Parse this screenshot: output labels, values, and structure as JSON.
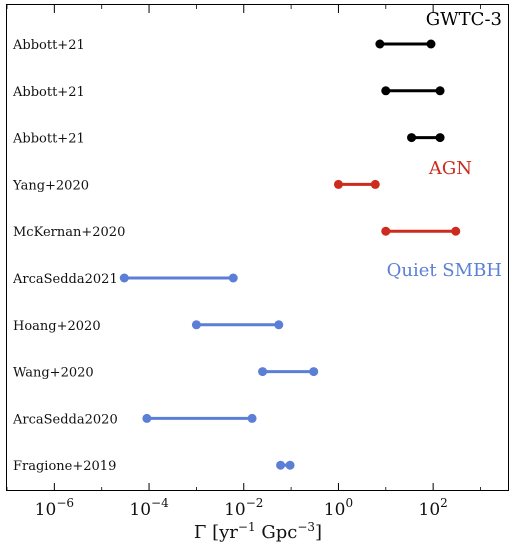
{
  "chart_data": {
    "type": "interval",
    "title": "",
    "xlabel": "Γ [yr⁻¹ Gpc⁻³]",
    "ylabel": "",
    "xscale": "log",
    "xlim": [
      1e-07,
      4000
    ],
    "xticks": [
      {
        "value": 1e-06,
        "base": "10",
        "exp": "−6"
      },
      {
        "value": 0.0001,
        "base": "10",
        "exp": "−4"
      },
      {
        "value": 0.01,
        "base": "10",
        "exp": "−2"
      },
      {
        "value": 1,
        "label": "10",
        "exp": "0"
      },
      {
        "value": 100,
        "base": "10",
        "exp": "2"
      }
    ],
    "grid": false,
    "legend": "none",
    "series": [
      {
        "label": "Abbott+21",
        "low": 7.5,
        "high": 90,
        "group": "GWTC-3",
        "color": "#000000"
      },
      {
        "label": "Abbott+21",
        "low": 10,
        "high": 140,
        "group": "GWTC-3",
        "color": "#000000"
      },
      {
        "label": "Abbott+21",
        "low": 35,
        "high": 140,
        "group": "GWTC-3",
        "color": "#000000"
      },
      {
        "label": "Yang+2020",
        "low": 1.0,
        "high": 6.0,
        "group": "AGN",
        "color": "#cc2b1d"
      },
      {
        "label": "McKernan+2020",
        "low": 10,
        "high": 300,
        "group": "AGN",
        "color": "#cc2b1d"
      },
      {
        "label": "ArcaSedda2021",
        "low": 3e-05,
        "high": 0.006,
        "group": "Quiet SMBH",
        "color": "#5b7fd6"
      },
      {
        "label": "Hoang+2020",
        "low": 0.001,
        "high": 0.055,
        "group": "Quiet SMBH",
        "color": "#5b7fd6"
      },
      {
        "label": "Wang+2020",
        "low": 0.025,
        "high": 0.3,
        "group": "Quiet SMBH",
        "color": "#5b7fd6"
      },
      {
        "label": "ArcaSedda2020",
        "low": 9e-05,
        "high": 0.015,
        "group": "Quiet SMBH",
        "color": "#5b7fd6"
      },
      {
        "label": "Fragione+2019",
        "low": 0.06,
        "high": 0.095,
        "group": "Quiet SMBH",
        "color": "#5b7fd6"
      }
    ],
    "group_labels": [
      {
        "text": "GWTC-3",
        "color": "#000000"
      },
      {
        "text": "AGN",
        "color": "#cc2b1d"
      },
      {
        "text": "Quiet SMBH",
        "color": "#5b7fd6"
      }
    ]
  }
}
